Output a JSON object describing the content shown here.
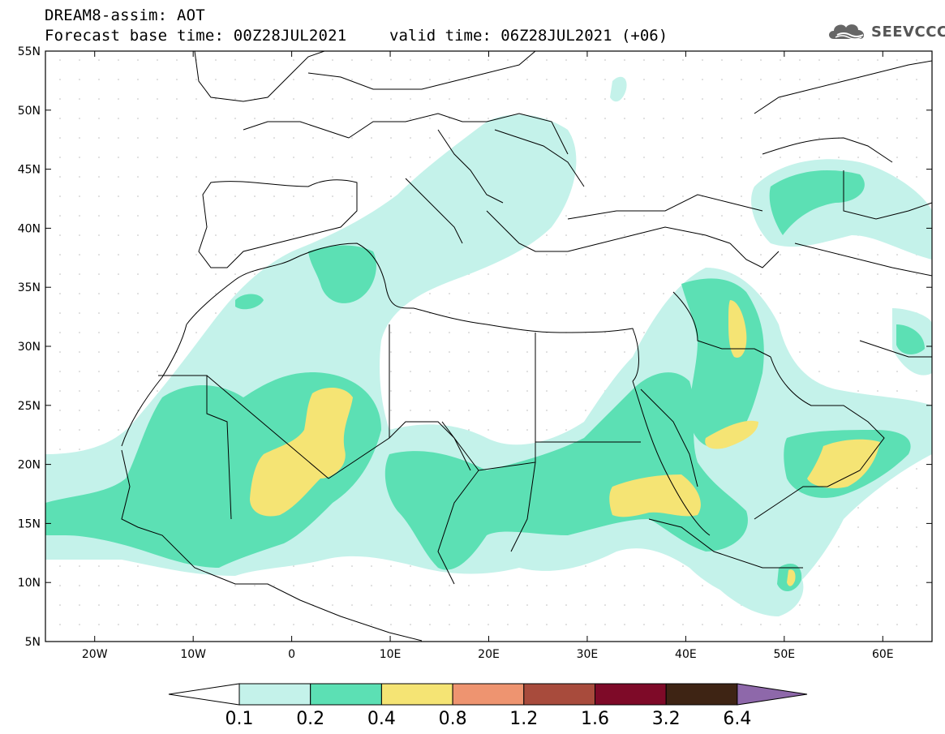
{
  "title": {
    "line1": "DREAM8-assim: AOT",
    "base": "Forecast base time: 00Z28JUL2021",
    "valid": "valid time: 06Z28JUL2021 (+06)"
  },
  "logo": {
    "text": "SEEVCCC",
    "icon": "cloud-icon"
  },
  "map": {
    "lon_range": [
      -25,
      65
    ],
    "lat_range": [
      5,
      55
    ],
    "lat_ticks": [
      "5N",
      "10N",
      "15N",
      "20N",
      "25N",
      "30N",
      "35N",
      "40N",
      "45N",
      "50N",
      "55N"
    ],
    "lon_ticks": [
      "20W",
      "10W",
      "0",
      "10E",
      "20E",
      "30E",
      "40E",
      "50E",
      "60E"
    ],
    "lat_tick_values": [
      5,
      10,
      15,
      20,
      25,
      30,
      35,
      40,
      45,
      50,
      55
    ],
    "lon_tick_values": [
      -20,
      -10,
      0,
      10,
      20,
      30,
      40,
      50,
      60
    ]
  },
  "colorbar": {
    "labels": [
      "0.1",
      "0.2",
      "0.4",
      "0.8",
      "1.2",
      "1.6",
      "3.2",
      "6.4"
    ],
    "colors": [
      "#c4f2ea",
      "#5ce0b4",
      "#f5e474",
      "#ee9470",
      "#a84b3c",
      "#7e0a28",
      "#3e2414",
      "#8e68aa"
    ],
    "under_color": "#ffffff"
  },
  "colors": {
    "level1": "#c4f2ea",
    "level2": "#5ce0b4",
    "level3": "#f5e474",
    "border": "#000000",
    "grid": "#bbbbbb"
  }
}
